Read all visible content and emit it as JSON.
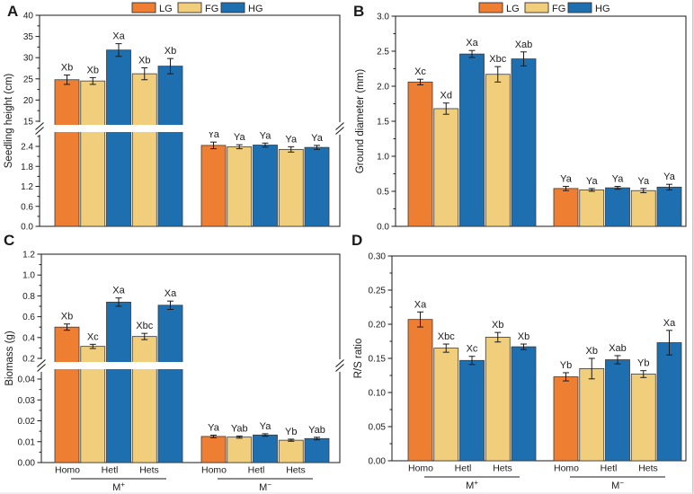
{
  "figure": {
    "background": "#ffffff",
    "axis_color": "#1a1a1a",
    "bar_outline_color": "#3a3a3a",
    "edge_line_color": "#c9c9c9"
  },
  "chart_data": {
    "type": "bar",
    "description": "Four-panel grouped bar figure with error bars and significance letters; panels A and C have broken y-axes; groups M+ and M- each contain categories Homo, Hetl, Hets",
    "series_legend": [
      {
        "label": "LG",
        "color": "#EE7E32"
      },
      {
        "label": "FG",
        "color": "#F0CE7B"
      },
      {
        "label": "HG",
        "color": "#1E6FB0"
      }
    ],
    "panels": [
      {
        "letter": "A",
        "ylabel": "Seedling height (cm)",
        "broken_axis": true,
        "show_legend": true,
        "show_x_labels": false,
        "categories": [
          "Homo",
          "Hetl",
          "Hets"
        ],
        "y_axis": {
          "upper": {
            "ticks": [
              "15",
              "20",
              "25",
              "30",
              "35",
              "40"
            ]
          },
          "lower": {
            "ticks": [
              "0.0",
              "0.6",
              "1.2",
              "1.8",
              "2.4"
            ]
          }
        },
        "groups": [
          {
            "label": "M+",
            "scale": "upper",
            "bars": [
              {
                "series": "LG",
                "value": 24.8,
                "err": 1.1,
                "sig": "Xb"
              },
              {
                "series": "FG",
                "value": 24.5,
                "err": 0.8,
                "sig": "Xb"
              },
              {
                "series": "HG",
                "value": 31.8,
                "err": 1.5,
                "sig": "Xa"
              },
              {
                "series": "FG",
                "value": 26.2,
                "err": 1.4,
                "sig": "Xb"
              },
              {
                "series": "HG",
                "value": 28.0,
                "err": 1.8,
                "sig": "Xb"
              }
            ]
          },
          {
            "label": "M-",
            "scale": "lower",
            "bars": [
              {
                "series": "LG",
                "value": 2.43,
                "err": 0.1,
                "sig": "Ya"
              },
              {
                "series": "FG",
                "value": 2.39,
                "err": 0.06,
                "sig": "Ya"
              },
              {
                "series": "HG",
                "value": 2.44,
                "err": 0.06,
                "sig": "Ya"
              },
              {
                "series": "FG",
                "value": 2.31,
                "err": 0.08,
                "sig": "Ya"
              },
              {
                "series": "HG",
                "value": 2.37,
                "err": 0.06,
                "sig": "Ya"
              }
            ]
          }
        ]
      },
      {
        "letter": "B",
        "ylabel": "Ground diameter (mm)",
        "broken_axis": false,
        "show_legend": true,
        "show_x_labels": false,
        "categories": [
          "Homo",
          "Hetl",
          "Hets"
        ],
        "y_axis": {
          "single": {
            "ticks": [
              "0.0",
              "0.5",
              "1.0",
              "1.5",
              "2.0",
              "2.5",
              "3.0"
            ]
          }
        },
        "groups": [
          {
            "label": "M+",
            "scale": "single",
            "bars": [
              {
                "series": "LG",
                "value": 2.06,
                "err": 0.04,
                "sig": "Xc"
              },
              {
                "series": "FG",
                "value": 1.68,
                "err": 0.08,
                "sig": "Xd"
              },
              {
                "series": "HG",
                "value": 2.46,
                "err": 0.05,
                "sig": "Xa"
              },
              {
                "series": "FG",
                "value": 2.17,
                "err": 0.11,
                "sig": "Xbc"
              },
              {
                "series": "HG",
                "value": 2.39,
                "err": 0.1,
                "sig": "Xab"
              }
            ]
          },
          {
            "label": "M-",
            "scale": "single",
            "bars": [
              {
                "series": "LG",
                "value": 0.54,
                "err": 0.03,
                "sig": "Ya"
              },
              {
                "series": "FG",
                "value": 0.52,
                "err": 0.02,
                "sig": "Ya"
              },
              {
                "series": "HG",
                "value": 0.55,
                "err": 0.02,
                "sig": "Ya"
              },
              {
                "series": "FG",
                "value": 0.51,
                "err": 0.03,
                "sig": "Ya"
              },
              {
                "series": "HG",
                "value": 0.56,
                "err": 0.04,
                "sig": "Ya"
              }
            ]
          }
        ]
      },
      {
        "letter": "C",
        "ylabel": "Biomass  (g)",
        "broken_axis": true,
        "show_legend": false,
        "show_x_labels": true,
        "categories": [
          "Homo",
          "Hetl",
          "Hets"
        ],
        "y_axis": {
          "upper": {
            "ticks": [
              "0.2",
              "0.4",
              "0.6",
              "0.8",
              "1.0",
              "1.2"
            ]
          },
          "lower": {
            "ticks": [
              "0.00",
              "0.01",
              "0.02",
              "0.03",
              "0.04"
            ]
          }
        },
        "groups": [
          {
            "label": "M+",
            "scale": "upper",
            "bars": [
              {
                "series": "LG",
                "value": 0.5,
                "err": 0.03,
                "sig": "Xb"
              },
              {
                "series": "FG",
                "value": 0.315,
                "err": 0.02,
                "sig": "Xc"
              },
              {
                "series": "HG",
                "value": 0.74,
                "err": 0.04,
                "sig": "Xa"
              },
              {
                "series": "FG",
                "value": 0.41,
                "err": 0.03,
                "sig": "Xbc"
              },
              {
                "series": "HG",
                "value": 0.71,
                "err": 0.04,
                "sig": "Xa"
              }
            ]
          },
          {
            "label": "M-",
            "scale": "lower",
            "bars": [
              {
                "series": "LG",
                "value": 0.0125,
                "err": 0.0006,
                "sig": "Ya"
              },
              {
                "series": "FG",
                "value": 0.0122,
                "err": 0.0005,
                "sig": "Yab"
              },
              {
                "series": "HG",
                "value": 0.0132,
                "err": 0.0006,
                "sig": "Ya"
              },
              {
                "series": "FG",
                "value": 0.0107,
                "err": 0.0005,
                "sig": "Yb"
              },
              {
                "series": "HG",
                "value": 0.0115,
                "err": 0.0006,
                "sig": "Yab"
              }
            ]
          }
        ]
      },
      {
        "letter": "D",
        "ylabel": "R/S ratio",
        "broken_axis": false,
        "show_legend": false,
        "show_x_labels": true,
        "categories": [
          "Homo",
          "Hetl",
          "Hets"
        ],
        "y_axis": {
          "single": {
            "ticks": [
              "0.00",
              "0.05",
              "0.10",
              "0.15",
              "0.20",
              "0.25",
              "0.30"
            ]
          }
        },
        "groups": [
          {
            "label": "M+",
            "scale": "single",
            "bars": [
              {
                "series": "LG",
                "value": 0.207,
                "err": 0.011,
                "sig": "Xa"
              },
              {
                "series": "FG",
                "value": 0.165,
                "err": 0.006,
                "sig": "Xbc"
              },
              {
                "series": "HG",
                "value": 0.147,
                "err": 0.006,
                "sig": "Xc"
              },
              {
                "series": "FG",
                "value": 0.181,
                "err": 0.007,
                "sig": "Xb"
              },
              {
                "series": "HG",
                "value": 0.167,
                "err": 0.004,
                "sig": "Xb"
              }
            ]
          },
          {
            "label": "M-",
            "scale": "single",
            "bars": [
              {
                "series": "LG",
                "value": 0.123,
                "err": 0.006,
                "sig": "Yb"
              },
              {
                "series": "FG",
                "value": 0.135,
                "err": 0.015,
                "sig": "Xb"
              },
              {
                "series": "HG",
                "value": 0.148,
                "err": 0.006,
                "sig": "Xab"
              },
              {
                "series": "FG",
                "value": 0.127,
                "err": 0.005,
                "sig": "Yb"
              },
              {
                "series": "HG",
                "value": 0.173,
                "err": 0.018,
                "sig": "Xa"
              }
            ]
          }
        ]
      }
    ]
  }
}
